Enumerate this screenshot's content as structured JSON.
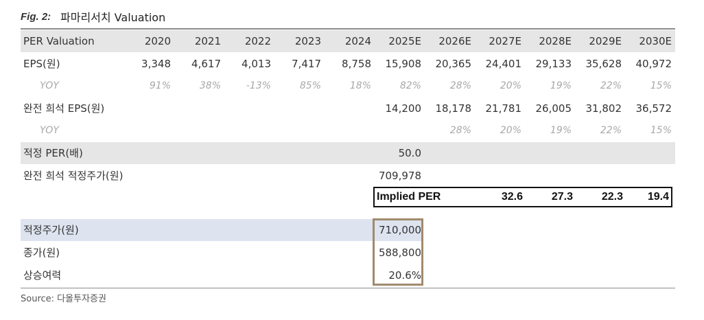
{
  "figure": {
    "label": "Fig. 2:",
    "title": "파마리서치 Valuation"
  },
  "header": {
    "label": "PER Valuation",
    "years": [
      "2020",
      "2021",
      "2022",
      "2023",
      "2024",
      "2025E",
      "2026E",
      "2027E",
      "2028E",
      "2029E",
      "2030E"
    ]
  },
  "eps": {
    "label": "EPS(원)",
    "values": [
      "3,348",
      "4,617",
      "4,013",
      "7,417",
      "8,758",
      "15,908",
      "20,365",
      "24,401",
      "29,133",
      "35,628",
      "40,972"
    ]
  },
  "eps_yoy": {
    "label": "YOY",
    "values": [
      "91%",
      "38%",
      "-13%",
      "85%",
      "18%",
      "82%",
      "28%",
      "20%",
      "19%",
      "22%",
      "15%"
    ]
  },
  "diluted_eps": {
    "label": "완전 희석 EPS(원)",
    "values": [
      "",
      "",
      "",
      "",
      "",
      "14,200",
      "18,178",
      "21,781",
      "26,005",
      "31,802",
      "36,572"
    ]
  },
  "diluted_yoy": {
    "label": "YOY",
    "values": [
      "",
      "",
      "",
      "",
      "",
      "",
      "28%",
      "20%",
      "19%",
      "22%",
      "15%"
    ]
  },
  "target_per": {
    "label": "적정 PER(배)",
    "value": "50.0"
  },
  "diluted_fair_price": {
    "label": "완전 희석 적정주가(원)",
    "value": "709,978"
  },
  "implied_per": {
    "label": "Implied PER",
    "values": [
      "32.6",
      "27.3",
      "22.3",
      "19.4"
    ]
  },
  "target_price": {
    "label": "적정주가(원)",
    "value": "710,000"
  },
  "current_price": {
    "label": "종가(원)",
    "value": "588,800"
  },
  "upside": {
    "label": "상승여력",
    "value": "20.6%"
  },
  "source": "Source:  다올투자증권"
}
